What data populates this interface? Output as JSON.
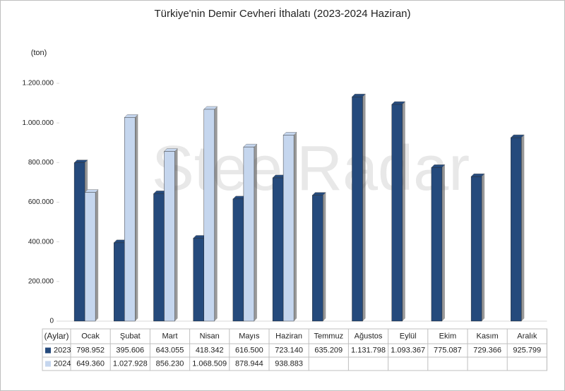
{
  "chart_data": {
    "type": "bar",
    "title": "Türkiye'nin Demir Cevheri İthalatı (2023-2024 Haziran)",
    "y_label": "(ton)",
    "table_header": "(Aylar)",
    "watermark": "SteelRadar",
    "categories": [
      "Ocak",
      "Şubat",
      "Mart",
      "Nisan",
      "Mayıs",
      "Haziran",
      "Temmuz",
      "Ağustos",
      "Eylül",
      "Ekim",
      "Kasım",
      "Aralık"
    ],
    "series": [
      {
        "name": "2023",
        "color": "#254a7c",
        "values": [
          798952,
          395606,
          643055,
          418342,
          616500,
          723140,
          635209,
          1131798,
          1093367,
          775087,
          729366,
          925799
        ],
        "value_labels": [
          "798.952",
          "395.606",
          "643.055",
          "418.342",
          "616.500",
          "723.140",
          "635.209",
          "1.131.798",
          "1.093.367",
          "775.087",
          "729.366",
          "925.799"
        ]
      },
      {
        "name": "2024",
        "color": "#c5d6ee",
        "values": [
          649360,
          1027928,
          856230,
          1068509,
          878944,
          938883,
          null,
          null,
          null,
          null,
          null,
          null
        ],
        "value_labels": [
          "649.360",
          "1.027.928",
          "856.230",
          "1.068.509",
          "878.944",
          "938.883",
          null,
          null,
          null,
          null,
          null,
          null
        ]
      }
    ],
    "ylim": [
      0,
      1200000
    ],
    "yticks": [
      0,
      {
        "value": 200000,
        "label": "200.000"
      },
      {
        "value": 400000,
        "label": "400.000"
      },
      {
        "value": 600000,
        "label": "600.000"
      },
      {
        "value": 800000,
        "label": "800.000"
      },
      {
        "value": 1000000,
        "label": "1.000.000"
      },
      {
        "value": 1200000,
        "label": "1.200.000"
      }
    ],
    "grid": false
  }
}
